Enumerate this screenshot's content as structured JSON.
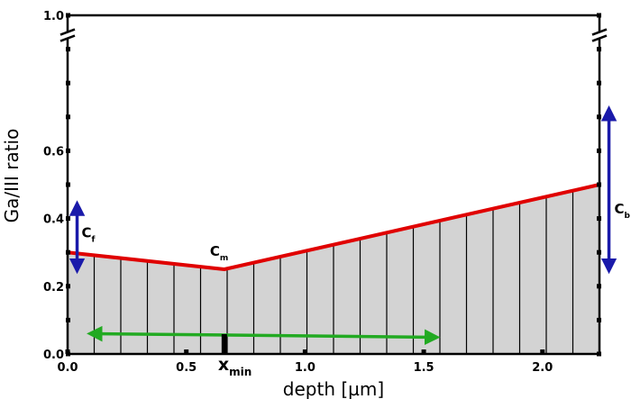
{
  "chart_data": {
    "type": "area",
    "title": "",
    "xlabel": "depth [µm]",
    "ylabel": "Ga/III ratio",
    "xlim": [
      0.0,
      2.24
    ],
    "ylim": [
      0.0,
      1.0
    ],
    "x_ticks": [
      {
        "value": 0.0,
        "label": "0.0"
      },
      {
        "value": 0.5,
        "label": "0.5"
      },
      {
        "value": 1.0,
        "label": "1.0"
      },
      {
        "value": 1.5,
        "label": "1.5"
      },
      {
        "value": 2.0,
        "label": "2.0"
      }
    ],
    "y_ticks": [
      {
        "value": 0.0,
        "label": "0.0"
      },
      {
        "value": 0.2,
        "label": "0.2"
      },
      {
        "value": 0.4,
        "label": "0.4"
      },
      {
        "value": 0.6,
        "label": "0.6"
      },
      {
        "value": 1.0,
        "label": "1.0"
      }
    ],
    "axis_break": "y-axis break between 0.6 and 1.0",
    "profile": {
      "x": [
        0.0,
        0.66,
        2.24
      ],
      "y": [
        0.3,
        0.25,
        0.5
      ]
    },
    "layers": {
      "count": 20,
      "x_start": 0.0,
      "x_end": 2.24
    },
    "annotations": {
      "cf": {
        "label": "C",
        "sub": "f",
        "range": [
          0.25,
          0.44
        ],
        "x": 0.04
      },
      "cm": {
        "label": "C",
        "sub": "m",
        "x": 0.66,
        "y": 0.25
      },
      "cb": {
        "label": "C",
        "sub": "b",
        "range": [
          0.25,
          0.72
        ],
        "x": 2.28
      },
      "xmin": {
        "label": "x",
        "sub": "min",
        "x": 0.66
      },
      "green_arrow": {
        "x_range": [
          0.1,
          1.55
        ],
        "y": 0.06
      }
    },
    "colors": {
      "profile": "#e00000",
      "fill": "#d3d3d3",
      "layer_lines": "#000000",
      "arrow_blue": "#1a1aaa",
      "arrow_green": "#22aa22"
    },
    "grid": false,
    "legend": "none"
  }
}
